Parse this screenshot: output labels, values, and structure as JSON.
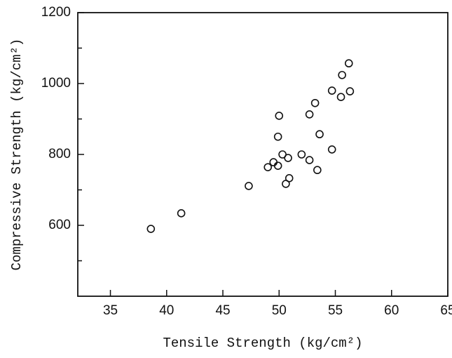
{
  "chart_data": {
    "type": "scatter",
    "x_label": "Tensile Strength (kg/cm²)",
    "y_label": "Compressive Strength (kg/cm²)",
    "x": [
      38.6,
      41.3,
      47.3,
      49.0,
      49.5,
      49.9,
      49.9,
      50.0,
      50.3,
      50.8,
      50.6,
      50.9,
      52.0,
      52.7,
      52.7,
      53.2,
      53.4,
      53.6,
      54.7,
      54.7,
      55.5,
      55.6,
      56.3,
      56.2
    ],
    "values": [
      590,
      634,
      711,
      764,
      778,
      768,
      850,
      909,
      800,
      790,
      717,
      733,
      800,
      784,
      913,
      945,
      756,
      857,
      814,
      980,
      962,
      1024,
      978,
      1057
    ],
    "color": "#111111",
    "xlim": [
      32.1,
      65
    ],
    "xticks": [
      35,
      40,
      45,
      50,
      55,
      60,
      65
    ],
    "ylim": [
      400,
      1200
    ],
    "yticks": [
      600,
      800,
      1000,
      1200
    ],
    "yminorticks": [
      500,
      700,
      900,
      1100
    ],
    "grid": false
  }
}
